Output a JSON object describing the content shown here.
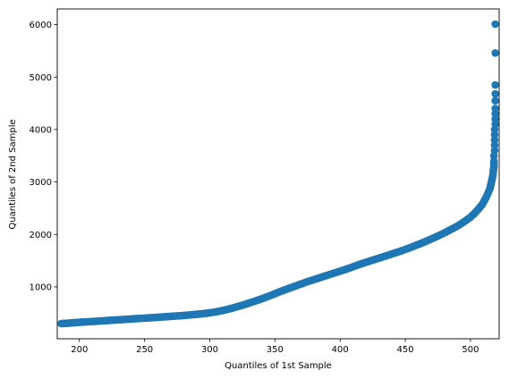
{
  "chart_data": {
    "type": "scatter",
    "title": "",
    "xlabel": "Quantiles of 1st Sample",
    "ylabel": "Quantiles of 2nd Sample",
    "xlim": [
      183,
      522
    ],
    "ylim": [
      10,
      6300
    ],
    "xticks": [
      200,
      250,
      300,
      350,
      400,
      450,
      500
    ],
    "yticks": [
      1000,
      2000,
      3000,
      4000,
      5000,
      6000
    ],
    "grid": false,
    "legend": "none",
    "marker_color": "#1f77b4",
    "points": [
      [
        186,
        300
      ],
      [
        190,
        305
      ],
      [
        195,
        315
      ],
      [
        200,
        325
      ],
      [
        205,
        332
      ],
      [
        210,
        340
      ],
      [
        215,
        348
      ],
      [
        220,
        356
      ],
      [
        225,
        364
      ],
      [
        230,
        372
      ],
      [
        235,
        380
      ],
      [
        240,
        388
      ],
      [
        245,
        396
      ],
      [
        250,
        404
      ],
      [
        255,
        412
      ],
      [
        260,
        420
      ],
      [
        265,
        428
      ],
      [
        270,
        437
      ],
      [
        275,
        446
      ],
      [
        280,
        455
      ],
      [
        285,
        465
      ],
      [
        290,
        477
      ],
      [
        295,
        490
      ],
      [
        300,
        505
      ],
      [
        305,
        525
      ],
      [
        310,
        550
      ],
      [
        315,
        580
      ],
      [
        320,
        615
      ],
      [
        325,
        650
      ],
      [
        330,
        690
      ],
      [
        335,
        730
      ],
      [
        340,
        775
      ],
      [
        345,
        820
      ],
      [
        350,
        870
      ],
      [
        355,
        920
      ],
      [
        360,
        965
      ],
      [
        365,
        1010
      ],
      [
        370,
        1055
      ],
      [
        375,
        1100
      ],
      [
        380,
        1140
      ],
      [
        385,
        1180
      ],
      [
        390,
        1220
      ],
      [
        395,
        1260
      ],
      [
        400,
        1300
      ],
      [
        405,
        1340
      ],
      [
        410,
        1385
      ],
      [
        415,
        1430
      ],
      [
        420,
        1470
      ],
      [
        425,
        1510
      ],
      [
        430,
        1550
      ],
      [
        435,
        1590
      ],
      [
        440,
        1630
      ],
      [
        445,
        1670
      ],
      [
        450,
        1715
      ],
      [
        455,
        1760
      ],
      [
        460,
        1810
      ],
      [
        465,
        1860
      ],
      [
        470,
        1915
      ],
      [
        475,
        1970
      ],
      [
        480,
        2030
      ],
      [
        485,
        2095
      ],
      [
        490,
        2160
      ],
      [
        495,
        2240
      ],
      [
        500,
        2330
      ],
      [
        503,
        2400
      ],
      [
        506,
        2480
      ],
      [
        509,
        2570
      ],
      [
        511,
        2660
      ],
      [
        513,
        2760
      ],
      [
        515,
        2880
      ],
      [
        516,
        2990
      ],
      [
        517,
        3100
      ],
      [
        517.5,
        3200
      ],
      [
        518,
        3300
      ],
      [
        518,
        3400
      ],
      [
        518,
        3500
      ],
      [
        518.5,
        3600
      ],
      [
        518.5,
        3700
      ],
      [
        518.5,
        3800
      ],
      [
        518.5,
        3900
      ],
      [
        518.5,
        4000
      ],
      [
        519,
        4100
      ],
      [
        519,
        4200
      ],
      [
        519,
        4300
      ],
      [
        519,
        4400
      ],
      [
        519,
        4550
      ],
      [
        519,
        4680
      ],
      [
        519,
        4850
      ],
      [
        519,
        5460
      ],
      [
        519,
        6010
      ]
    ]
  }
}
